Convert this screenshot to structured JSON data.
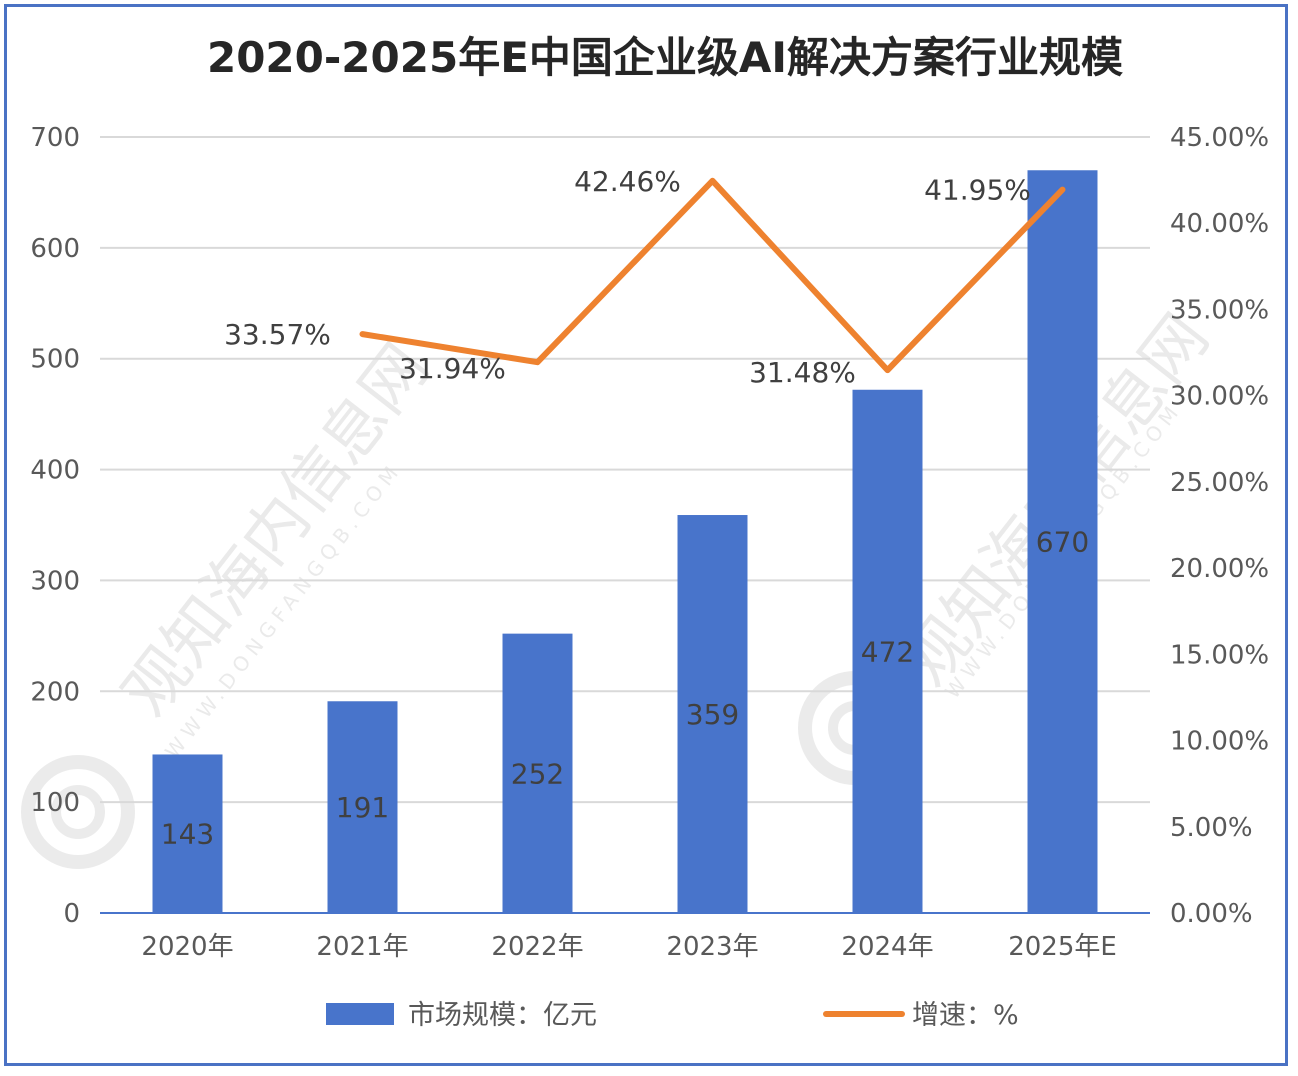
{
  "chart_data": {
    "type": "bar+line",
    "title": "2020-2025年E中国企业级AI解决方案行业规模",
    "categories": [
      "2020年",
      "2021年",
      "2022年",
      "2023年",
      "2024年",
      "2025年E"
    ],
    "series": [
      {
        "name": "市场规模：亿元",
        "type": "bar",
        "axis": "left",
        "color": "#4874cb",
        "values": [
          143,
          191,
          252,
          359,
          472,
          670
        ],
        "labels": [
          "143",
          "191",
          "252",
          "359",
          "472",
          "670"
        ]
      },
      {
        "name": "增速：%",
        "type": "line",
        "axis": "right",
        "color": "#ee822f",
        "values": [
          null,
          33.57,
          31.94,
          42.46,
          31.48,
          41.95
        ],
        "labels": [
          "",
          "33.57%",
          "31.94%",
          "42.46%",
          "31.48%",
          "41.95%"
        ]
      }
    ],
    "y_left": {
      "min": 0,
      "max": 700,
      "ticks": [
        "0",
        "100",
        "200",
        "300",
        "400",
        "500",
        "600",
        "700"
      ]
    },
    "y_right": {
      "min": 0,
      "max": 45,
      "ticks": [
        "0.00%",
        "5.00%",
        "10.00%",
        "15.00%",
        "20.00%",
        "25.00%",
        "30.00%",
        "35.00%",
        "40.00%",
        "45.00%"
      ]
    },
    "grid": true,
    "legend_position": "bottom"
  },
  "watermark": {
    "text": "观知海内信息网",
    "subtext": "WWW.DONGFANGQB.COM"
  },
  "colors": {
    "border": "#4a72c4",
    "grid": "#d9d9d9",
    "axis": "#4874cb"
  }
}
